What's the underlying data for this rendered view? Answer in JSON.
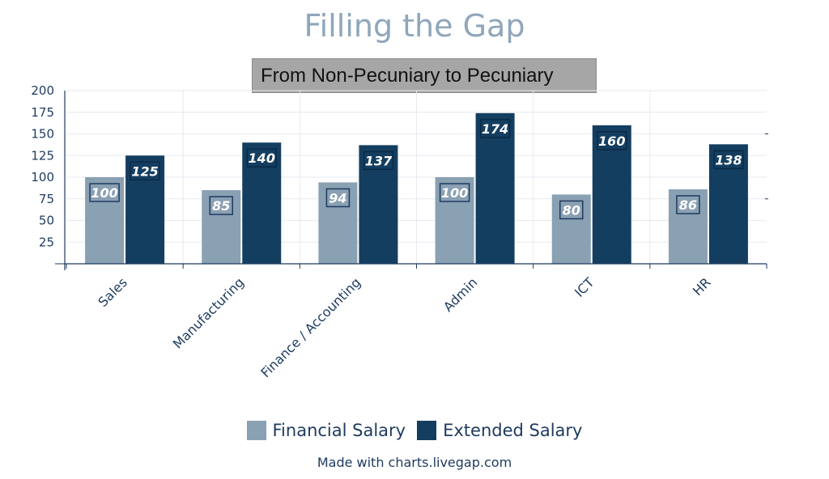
{
  "chart_data": {
    "type": "bar",
    "title": "Filling the Gap",
    "subtitle": "From Non-Pecuniary to Pecuniary",
    "categories": [
      "Sales",
      "Manufacturing",
      "Finance / Accounting",
      "Admin",
      "ICT",
      "HR"
    ],
    "series": [
      {
        "name": "Financial Salary",
        "values": [
          100,
          85,
          94,
          100,
          80,
          86
        ],
        "color": "#8aa0b3"
      },
      {
        "name": "Extended Salary",
        "values": [
          125,
          140,
          137,
          174,
          160,
          138
        ],
        "color": "#143e60"
      }
    ],
    "ylim": [
      0,
      200
    ],
    "yticks": [
      25,
      50,
      75,
      100,
      125,
      150,
      175,
      200
    ],
    "xlabel": "",
    "ylabel": "",
    "grid": true,
    "legend_position": "bottom",
    "data_labels": true,
    "axis_color": "#1e3a5f"
  },
  "footer": "Made with charts.livegap.com"
}
